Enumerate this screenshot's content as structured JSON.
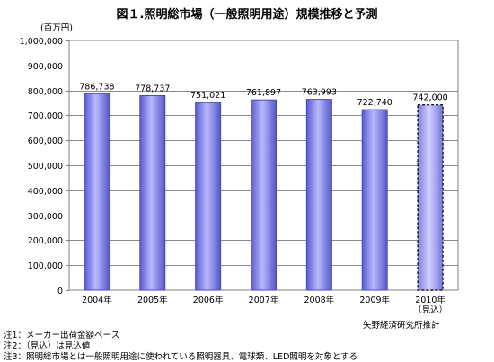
{
  "title": "図１.照明総市場（一般照明用途）規模推移と予測",
  "chart_data": {
    "type": "bar",
    "ylabel": "(百万円)",
    "ylim": [
      0,
      1000000
    ],
    "yticks": [
      "0",
      "100,000",
      "200,000",
      "300,000",
      "400,000",
      "500,000",
      "600,000",
      "700,000",
      "800,000",
      "900,000",
      "1,000,000"
    ],
    "categories": [
      "2004年",
      "2005年",
      "2006年",
      "2007年",
      "2008年",
      "2009年",
      "2010年"
    ],
    "category_sublabels": [
      "",
      "",
      "",
      "",
      "",
      "",
      "（見込）"
    ],
    "values": [
      786738,
      778737,
      751021,
      761897,
      763993,
      722740,
      742000
    ],
    "data_labels": [
      "786,738",
      "778,737",
      "751,021",
      "761,897",
      "763,993",
      "722,740",
      "742,000"
    ],
    "estimated": [
      false,
      false,
      false,
      false,
      false,
      false,
      true
    ],
    "grid": true,
    "bar_color": "#8f8ff0",
    "estimate_bar_color": "#aeb0f5"
  },
  "source": "矢野経済研究所推計",
  "notes": [
    "注1：メーカー出荷金額ベース",
    "注2：（見込）は見込値",
    "注3：照明総市場とは一般照明用途に使われている照明器具、電球類、LED照明を対象とする"
  ]
}
